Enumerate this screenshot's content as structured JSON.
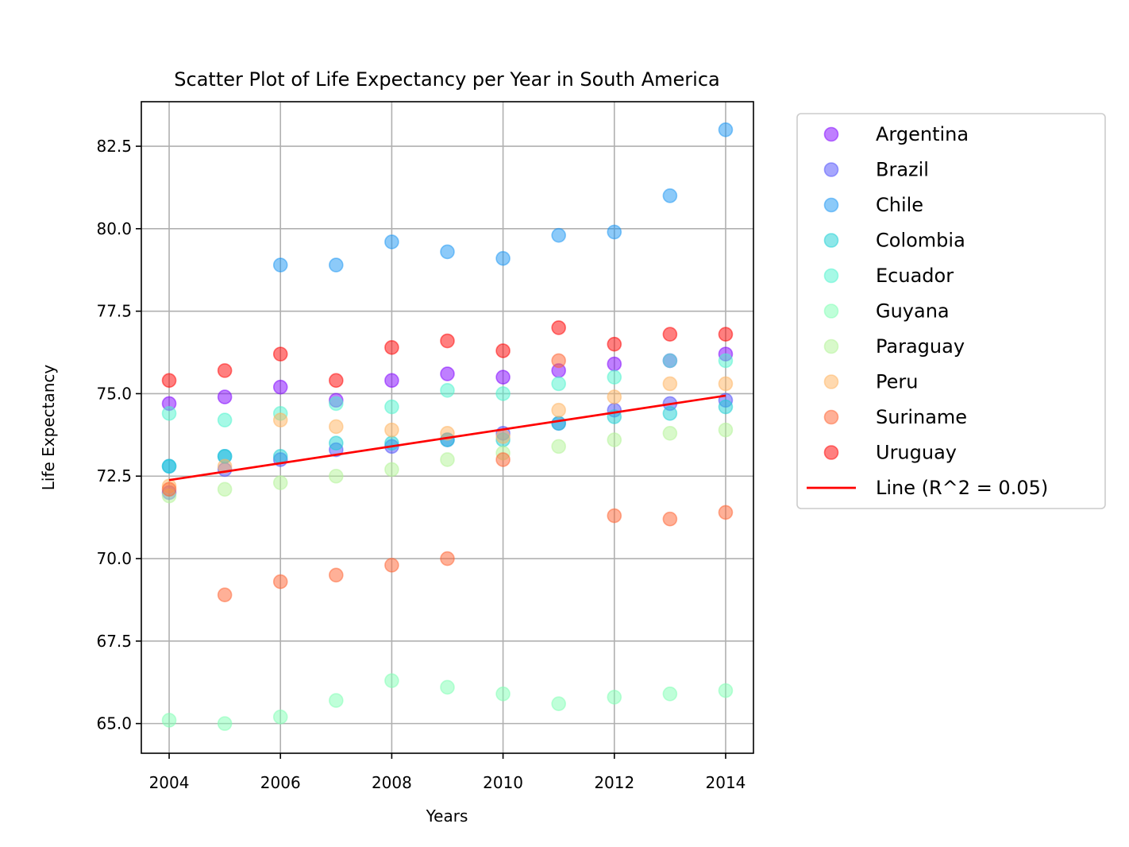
{
  "chart_data": {
    "type": "scatter",
    "title": "Scatter Plot of Life Expectancy per Year in South America",
    "xlabel": "Years",
    "ylabel": "Life Expectancy",
    "xlim": [
      2003.5,
      2014.5
    ],
    "ylim": [
      64.1,
      83.85
    ],
    "xticks": [
      2004,
      2006,
      2008,
      2010,
      2012,
      2014
    ],
    "xtick_labels": [
      "2004",
      "2006",
      "2008",
      "2010",
      "2012",
      "2014"
    ],
    "yticks": [
      65.0,
      67.5,
      70.0,
      72.5,
      75.0,
      77.5,
      80.0,
      82.5
    ],
    "ytick_labels": [
      "65.0",
      "67.5",
      "70.0",
      "72.5",
      "75.0",
      "77.5",
      "80.0",
      "82.5"
    ],
    "grid": true,
    "legend_position": "outside-right",
    "x": [
      2004,
      2005,
      2006,
      2007,
      2008,
      2009,
      2010,
      2011,
      2012,
      2013,
      2014
    ],
    "series": [
      {
        "name": "Argentina",
        "color": "#8000ff",
        "values": [
          74.7,
          74.9,
          75.2,
          74.8,
          75.4,
          75.6,
          75.5,
          75.7,
          75.9,
          76.0,
          76.2
        ]
      },
      {
        "name": "Brazil",
        "color": "#4e4dfc",
        "values": [
          72.0,
          72.7,
          73.0,
          73.3,
          73.4,
          73.6,
          73.8,
          74.1,
          74.5,
          74.7,
          74.8
        ]
      },
      {
        "name": "Chile",
        "color": "#1996f3",
        "values": [
          72.8,
          73.1,
          78.9,
          78.9,
          79.6,
          79.3,
          79.1,
          79.8,
          79.9,
          81.0,
          83.0
        ]
      },
      {
        "name": "Colombia",
        "color": "#1bcfd4",
        "values": [
          72.8,
          73.1,
          73.1,
          73.5,
          73.5,
          73.6,
          73.6,
          74.1,
          74.3,
          74.4,
          74.6
        ]
      },
      {
        "name": "Ecuador",
        "color": "#4df3ce",
        "values": [
          74.4,
          74.2,
          74.4,
          74.7,
          74.6,
          75.1,
          75.0,
          75.3,
          75.5,
          76.0,
          76.0
        ]
      },
      {
        "name": "Guyana",
        "color": "#80ffb4",
        "values": [
          65.1,
          65.0,
          65.2,
          65.7,
          66.3,
          66.1,
          65.9,
          65.6,
          65.8,
          65.9,
          66.0
        ]
      },
      {
        "name": "Paraguay",
        "color": "#b2f396",
        "values": [
          71.9,
          72.1,
          72.3,
          72.5,
          72.7,
          73.0,
          73.2,
          73.4,
          73.6,
          73.8,
          73.9
        ]
      },
      {
        "name": "Peru",
        "color": "#ffb360",
        "values": [
          72.2,
          72.8,
          74.2,
          74.0,
          73.9,
          73.8,
          73.7,
          74.5,
          74.9,
          75.3,
          75.3
        ]
      },
      {
        "name": "Suriname",
        "color": "#ff6130",
        "values": [
          72.1,
          68.9,
          69.3,
          69.5,
          69.8,
          70.0,
          73.0,
          76.0,
          71.3,
          71.2,
          71.4
        ]
      },
      {
        "name": "Uruguay",
        "color": "#ff0000",
        "values": [
          75.4,
          75.7,
          76.2,
          75.4,
          76.4,
          76.6,
          76.3,
          77.0,
          76.5,
          76.8,
          76.8
        ]
      }
    ],
    "fit_line": {
      "name": "Line (R^2 = 0.05)",
      "color": "#ff0000",
      "x": [
        2004,
        2014
      ],
      "y": [
        72.38,
        74.94
      ]
    }
  }
}
